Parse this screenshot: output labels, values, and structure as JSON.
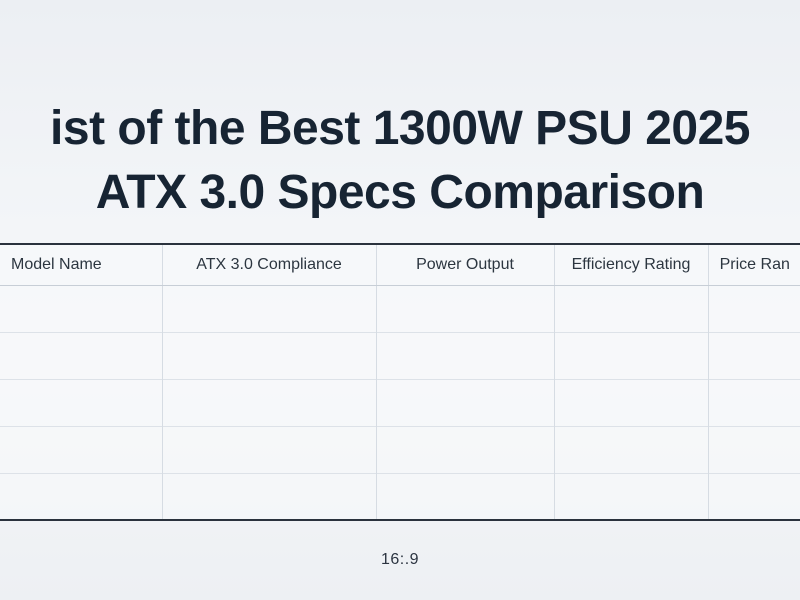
{
  "header": {
    "title_line_1": "ist of the Best 1300W PSU 2025",
    "title_line_2": "ATX 3.0 Specs Comparison"
  },
  "table": {
    "columns": [
      "Model Name",
      "ATX 3.0 Compliance",
      "Power Output",
      "Efficiency Rating",
      "Price Ran"
    ],
    "rows": [
      [
        "",
        "",
        "",
        "",
        ""
      ],
      [
        "",
        "",
        "",
        "",
        ""
      ],
      [
        "",
        "",
        "",
        "",
        ""
      ],
      [
        "",
        "",
        "",
        "",
        ""
      ],
      [
        "",
        "",
        "",
        "",
        ""
      ]
    ]
  },
  "footer": {
    "aspect_label": "16:.9"
  }
}
